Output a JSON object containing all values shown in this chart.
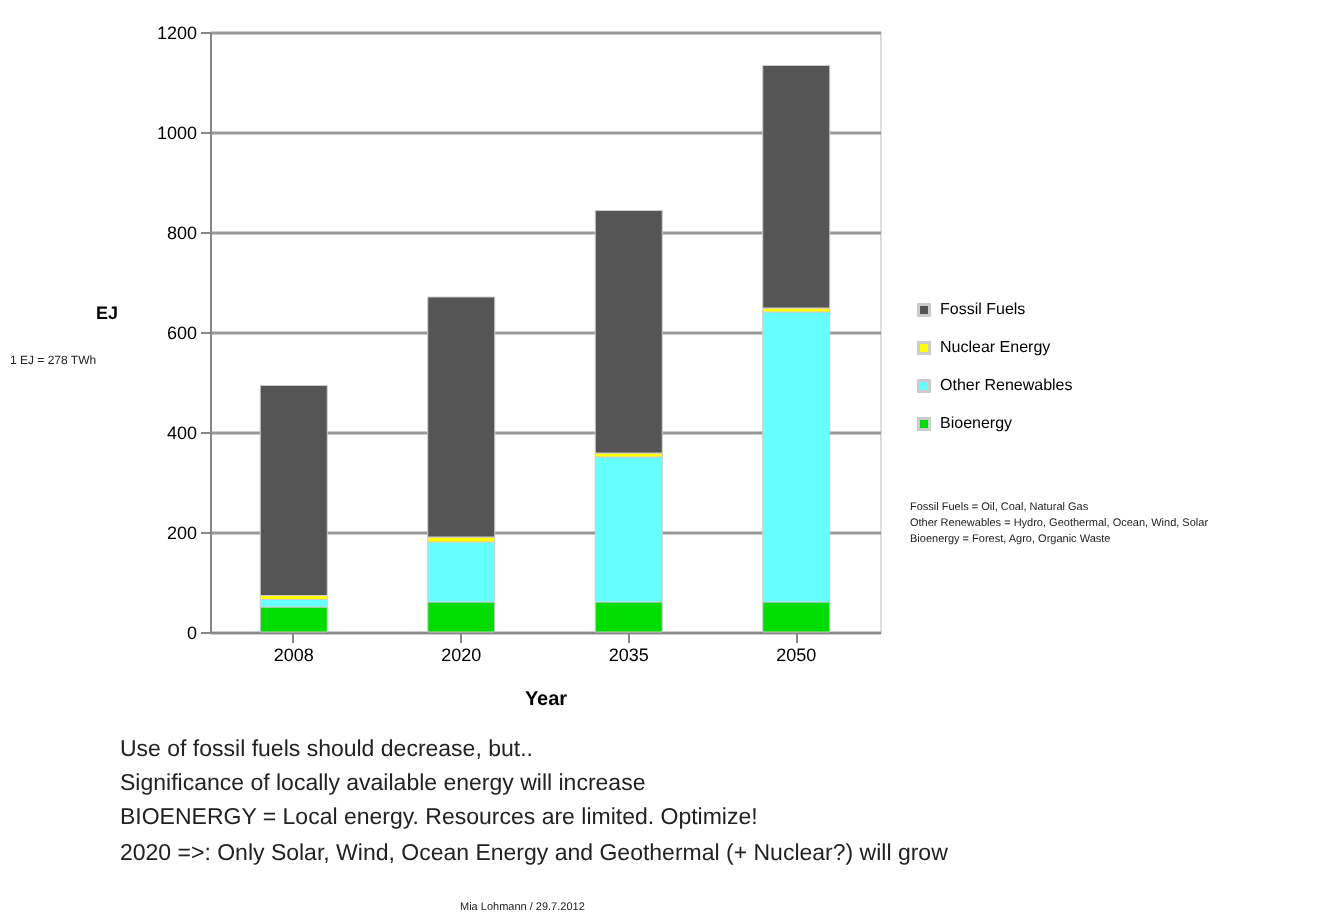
{
  "chart_data": {
    "type": "bar",
    "stacked": true,
    "xlabel": "Year",
    "ylabel": "EJ",
    "categories": [
      "2008",
      "2020",
      "2035",
      "2050"
    ],
    "series": [
      {
        "name": "Bioenergy",
        "color": "#00dd00",
        "values": [
          50,
          60,
          60,
          60
        ]
      },
      {
        "name": "Other Renewables",
        "color": "#66ffff",
        "values": [
          15,
          120,
          290,
          580
        ]
      },
      {
        "name": "Nuclear Energy",
        "color": "#ffff00",
        "values": [
          8,
          10,
          8,
          8
        ]
      },
      {
        "name": "Fossil Fuels",
        "color": "#555555",
        "values": [
          420,
          480,
          485,
          485
        ]
      }
    ],
    "ylim": [
      0,
      1200
    ],
    "yticks": [
      0,
      200,
      400,
      600,
      800,
      1000,
      1200
    ],
    "grid": "y",
    "legend": "right",
    "annotations": [
      "1 EJ = 278 TWh",
      "Fossil Fuels = Oil, Coal, Natural Gas",
      "Other Renewables = Hydro, Geothermal, Ocean,  Wind, Solar",
      "Bioenergy = Forest, Agro, Organic Waste",
      "Use of fossil fuels should decrease, but..",
      "Significance of locally available energy will increase",
      "BIOENERGY = Local energy. Resources are limited. Optimize!",
      "2020 =>: Only Solar, Wind, Ocean Energy and Geothermal (+ Nuclear?) will grow",
      "Mia Lohmann / 29.7.2012"
    ]
  }
}
